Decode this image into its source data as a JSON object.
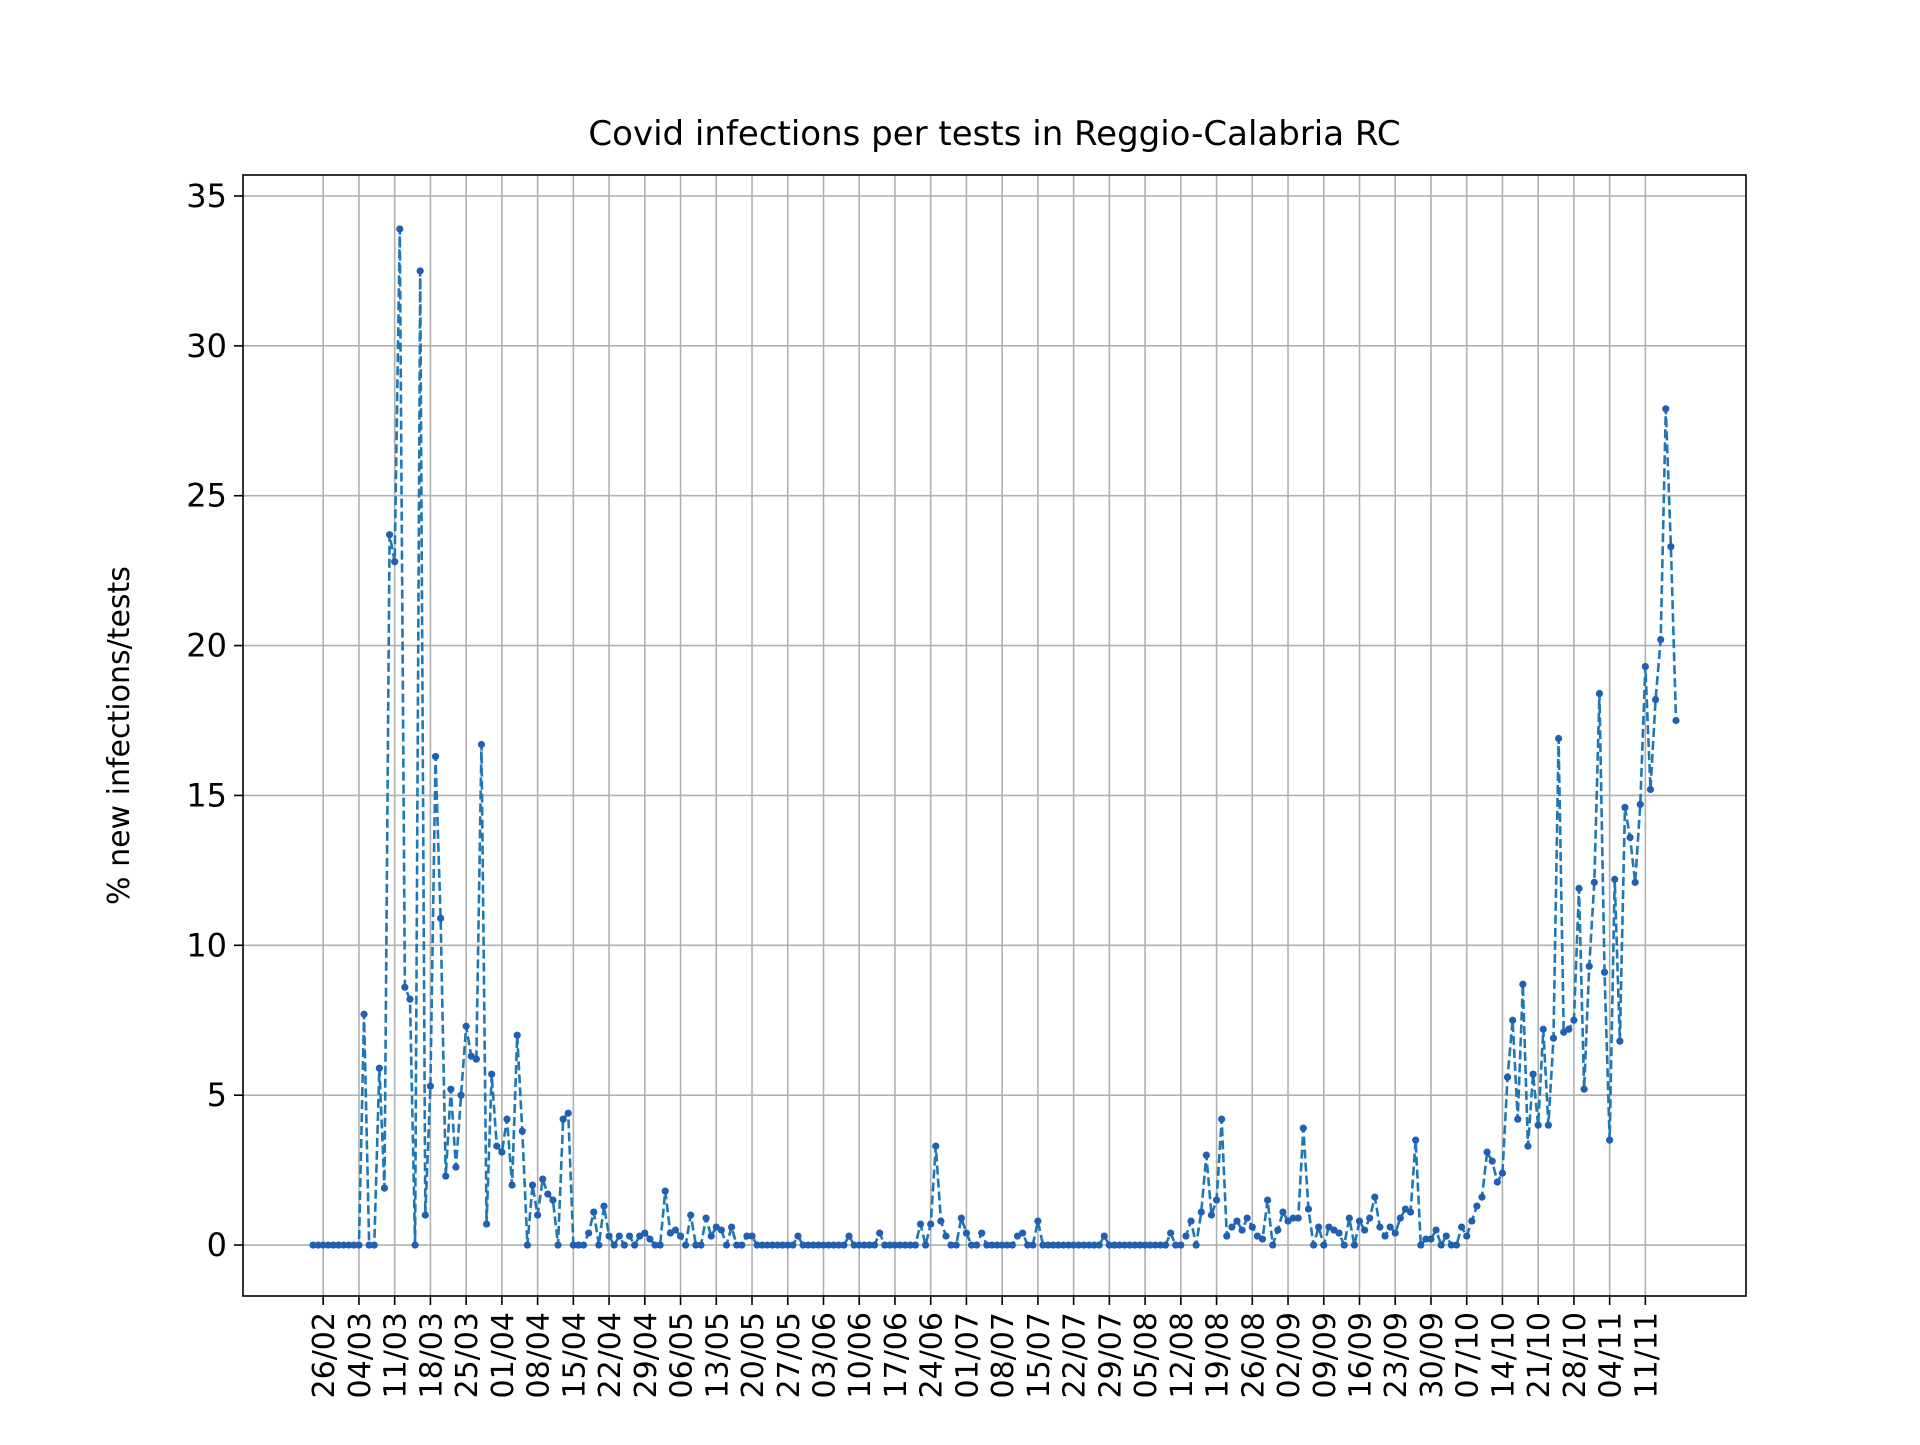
{
  "chart_data": {
    "type": "line",
    "title": "Covid infections per tests in Reggio-Calabria RC",
    "xlabel": "",
    "ylabel": "% new infections/tests",
    "ylim": [
      -1.7,
      35.7
    ],
    "yticks": [
      0,
      5,
      10,
      15,
      20,
      25,
      30,
      35
    ],
    "xticks": [
      "26/02",
      "04/03",
      "11/03",
      "18/03",
      "25/03",
      "01/04",
      "08/04",
      "15/04",
      "22/04",
      "29/04",
      "06/05",
      "13/05",
      "20/05",
      "27/05",
      "03/06",
      "10/06",
      "17/06",
      "24/06",
      "01/07",
      "08/07",
      "15/07",
      "22/07",
      "29/07",
      "05/08",
      "12/08",
      "19/08",
      "26/08",
      "02/09",
      "09/09",
      "16/09",
      "23/09",
      "30/09",
      "07/10",
      "14/10",
      "21/10",
      "28/10",
      "04/11",
      "11/11"
    ],
    "start_date": "2020-02-24",
    "grid": true,
    "line_style": "dashed",
    "series": [
      {
        "color": "#1f77b4",
        "marker_color": "#1f5fb4",
        "values": [
          0,
          0,
          0,
          0,
          0,
          0,
          0,
          0,
          0,
          0,
          7.7,
          0,
          0,
          5.9,
          1.9,
          23.7,
          22.8,
          33.9,
          8.6,
          8.2,
          0,
          32.5,
          1.0,
          5.3,
          16.3,
          10.9,
          2.3,
          5.2,
          2.6,
          5.0,
          7.3,
          6.3,
          6.2,
          16.7,
          0.7,
          5.7,
          3.3,
          3.1,
          4.2,
          2.0,
          7.0,
          3.8,
          0,
          2.0,
          1.0,
          2.2,
          1.7,
          1.5,
          0,
          4.2,
          4.4,
          0,
          0,
          0,
          0.4,
          1.1,
          0,
          1.3,
          0.3,
          0,
          0.3,
          0,
          0.3,
          0,
          0.3,
          0.4,
          0.2,
          0,
          0,
          1.8,
          0.4,
          0.5,
          0.3,
          0,
          1.0,
          0,
          0,
          0.9,
          0.3,
          0.6,
          0.5,
          0,
          0.6,
          0,
          0,
          0.3,
          0.3,
          0,
          0,
          0,
          0,
          0,
          0,
          0,
          0,
          0.3,
          0,
          0,
          0,
          0,
          0,
          0,
          0,
          0,
          0,
          0.3,
          0,
          0,
          0,
          0,
          0,
          0.4,
          0,
          0,
          0,
          0,
          0,
          0,
          0,
          0.7,
          0,
          0.7,
          3.3,
          0.8,
          0.3,
          0,
          0,
          0.9,
          0.4,
          0,
          0,
          0.4,
          0,
          0,
          0,
          0,
          0,
          0,
          0.3,
          0.4,
          0,
          0,
          0.8,
          0,
          0,
          0,
          0,
          0,
          0,
          0,
          0,
          0,
          0,
          0,
          0,
          0.3,
          0,
          0,
          0,
          0,
          0,
          0,
          0,
          0,
          0,
          0,
          0,
          0,
          0.4,
          0,
          0,
          0.3,
          0.8,
          0,
          1.1,
          3.0,
          1.0,
          1.5,
          4.2,
          0.3,
          0.6,
          0.8,
          0.5,
          0.9,
          0.6,
          0.3,
          0.2,
          1.5,
          0,
          0.5,
          1.1,
          0.8,
          0.9,
          0.9,
          3.9,
          1.2,
          0,
          0.6,
          0,
          0.6,
          0.5,
          0.4,
          0,
          0.9,
          0,
          0.8,
          0.5,
          0.9,
          1.6,
          0.6,
          0.3,
          0.6,
          0.4,
          0.9,
          1.2,
          1.1,
          3.5,
          0,
          0.2,
          0.2,
          0.5,
          0,
          0.3,
          0,
          0,
          0.6,
          0.3,
          0.8,
          1.3,
          1.6,
          3.1,
          2.8,
          2.1,
          2.4,
          5.6,
          7.5,
          4.2,
          8.7,
          3.3,
          5.7,
          4.0,
          7.2,
          4.0,
          6.9,
          16.9,
          7.1,
          7.2,
          7.5,
          11.9,
          5.2,
          9.3,
          12.1,
          18.4,
          9.1,
          3.5,
          12.2,
          6.8,
          14.6,
          13.6,
          12.1,
          14.7,
          19.3,
          15.2,
          18.2,
          20.2,
          27.9,
          23.3,
          17.5
        ]
      }
    ]
  }
}
